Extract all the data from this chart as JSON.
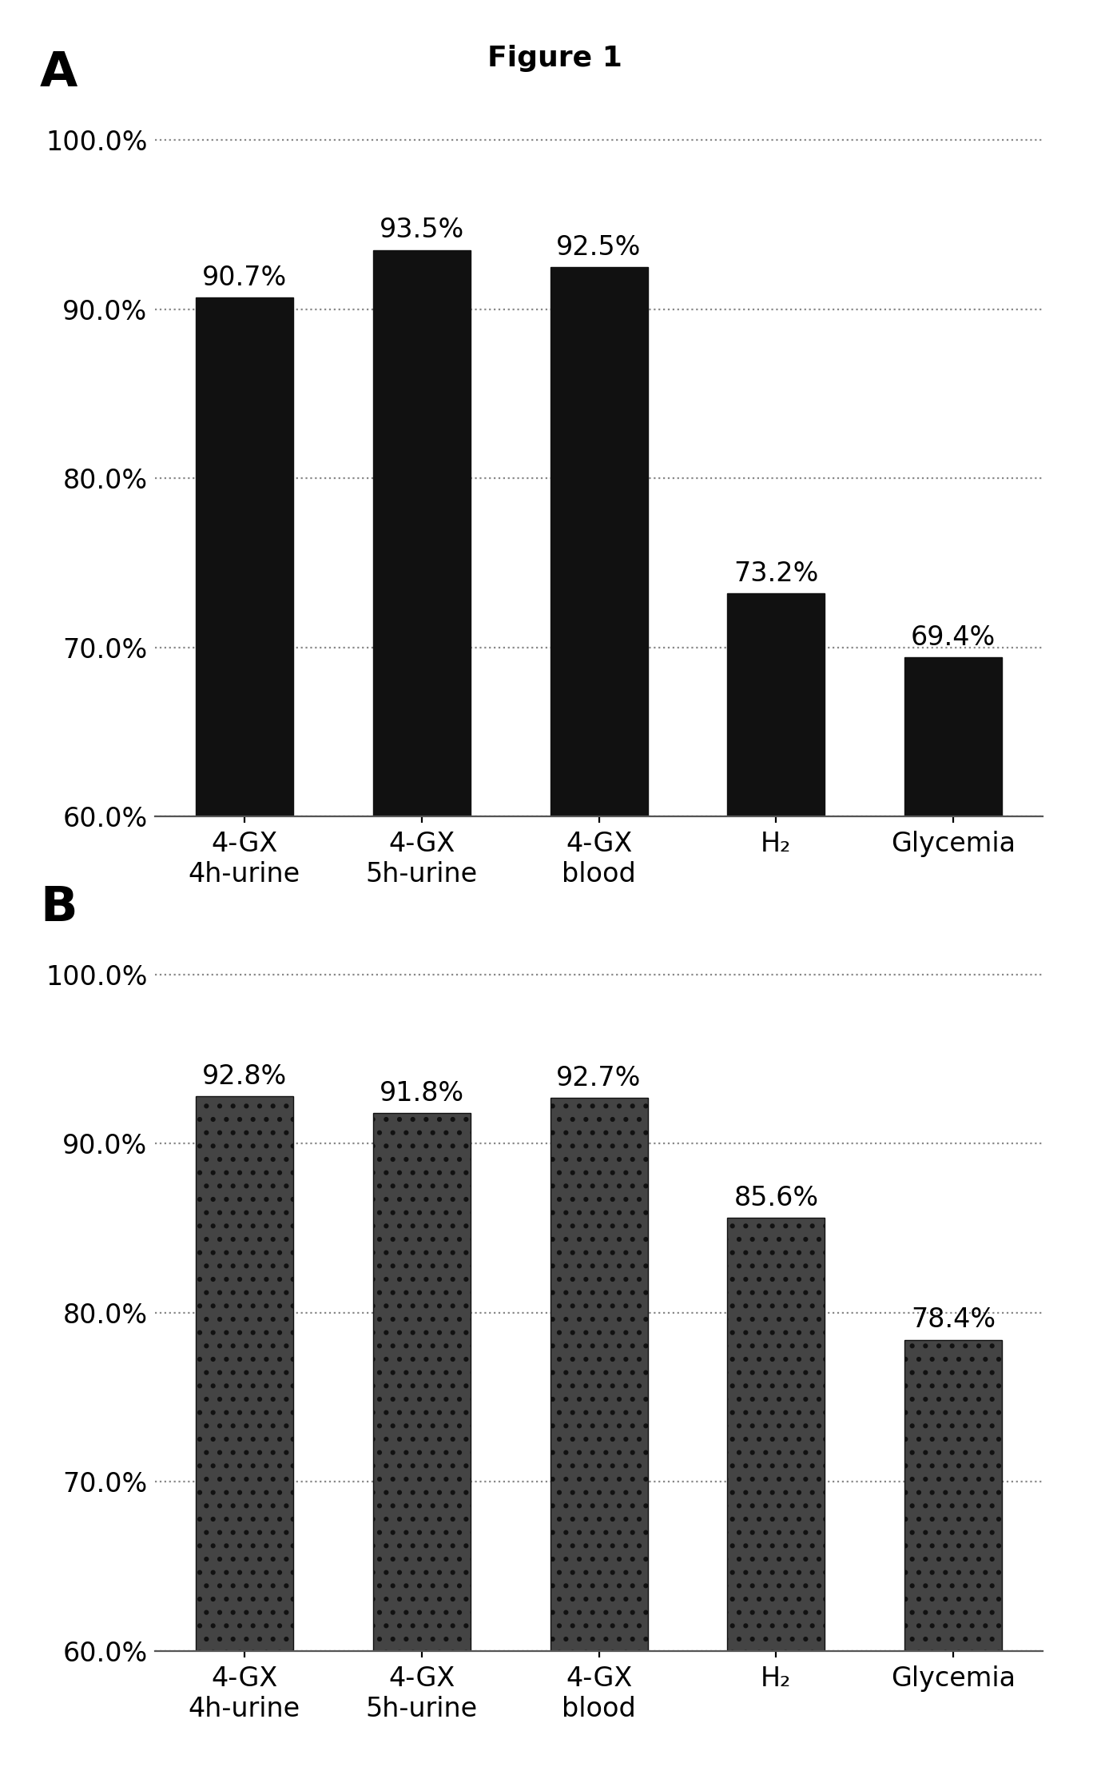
{
  "title": "Figure 1",
  "panel_A": {
    "label": "A",
    "categories": [
      "4-GX\n4h-urine",
      "4-GX\n5h-urine",
      "4-GX\nblood",
      "H₂",
      "Glycemia"
    ],
    "values": [
      90.7,
      93.5,
      92.5,
      73.2,
      69.4
    ],
    "bar_color": "#111111",
    "bar_hatch": null,
    "ylim": [
      60.0,
      102.0
    ],
    "yticks": [
      60.0,
      70.0,
      80.0,
      90.0,
      100.0
    ],
    "yticklabels": [
      "60.0%",
      "70.0%",
      "80.0%",
      "90.0%",
      "100.0%"
    ],
    "value_labels": [
      "90.7%",
      "93.5%",
      "92.5%",
      "73.2%",
      "69.4%"
    ]
  },
  "panel_B": {
    "label": "B",
    "categories": [
      "4-GX\n4h-urine",
      "4-GX\n5h-urine",
      "4-GX\nblood",
      "H₂",
      "Glycemia"
    ],
    "values": [
      92.8,
      91.8,
      92.7,
      85.6,
      78.4
    ],
    "bar_color": "#444444",
    "bar_hatch": "..",
    "ylim": [
      60.0,
      102.0
    ],
    "yticks": [
      60.0,
      70.0,
      80.0,
      90.0,
      100.0
    ],
    "yticklabels": [
      "60.0%",
      "70.0%",
      "80.0%",
      "90.0%",
      "100.0%"
    ],
    "value_labels": [
      "92.8%",
      "91.8%",
      "92.7%",
      "85.6%",
      "78.4%"
    ]
  },
  "background_color": "#ffffff",
  "title_fontsize": 13,
  "label_fontsize": 22,
  "tick_fontsize": 12,
  "bar_value_fontsize": 12,
  "xticklabel_fontsize": 12,
  "bar_width": 0.55
}
